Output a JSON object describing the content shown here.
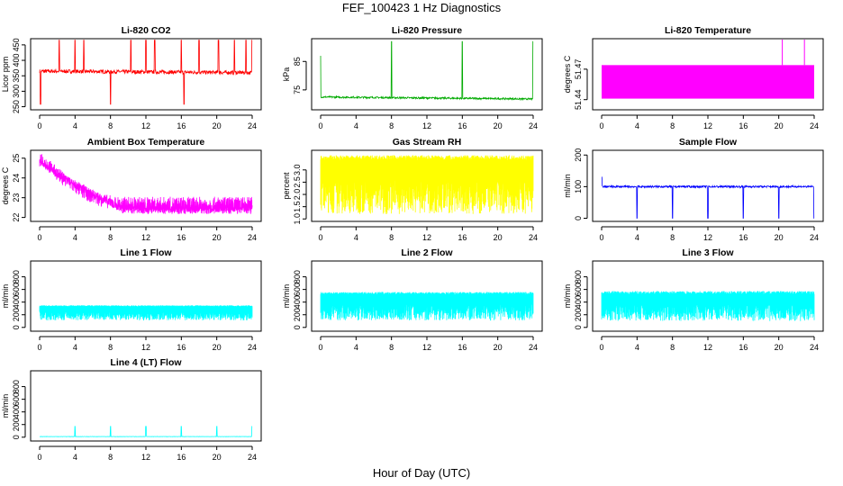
{
  "figure": {
    "title": "FEF_100423  1 Hz Diagnostics",
    "xlabel": "Hour of Day (UTC)"
  },
  "chart_data": [
    {
      "id": "co2",
      "type": "line",
      "title": "Li-820 CO2",
      "ylabel": "Licor ppm",
      "color": "#ff0000",
      "xlim": [
        0,
        24
      ],
      "ylim": [
        240,
        470
      ],
      "xticks": [
        0,
        4,
        8,
        12,
        16,
        20,
        24
      ],
      "yticks": [
        250,
        300,
        350,
        400,
        450
      ],
      "pattern": "spikes",
      "base": [
        365,
        360
      ],
      "noise": 6,
      "spike_hours": [
        2.2,
        4,
        5,
        8,
        10.3,
        12,
        13,
        16,
        18,
        20.2,
        22,
        23.3,
        24
      ],
      "spike_value": 465,
      "dip_hours": [
        0.1,
        8,
        16.3
      ],
      "dip_value": 258
    },
    {
      "id": "pressure",
      "type": "line",
      "title": "Li-820 Pressure",
      "ylabel": "kPa",
      "color": "#00aa00",
      "xlim": [
        0,
        24
      ],
      "ylim": [
        68,
        93
      ],
      "xticks": [
        0,
        4,
        8,
        12,
        16,
        20,
        24
      ],
      "yticks": [
        75,
        85
      ],
      "pattern": "spikes",
      "base": [
        72.5,
        71.8
      ],
      "noise": 0.3,
      "spike_hours": [
        8,
        16,
        24
      ],
      "spike_value": 92,
      "start_value": 87
    },
    {
      "id": "licor_temp",
      "type": "band",
      "title": "Li-820 Temperature",
      "ylabel": "degrees C",
      "color": "#ff00ff",
      "xlim": [
        0,
        24
      ],
      "ylim": [
        51.43,
        51.5
      ],
      "xticks": [
        0,
        4,
        8,
        12,
        16,
        20,
        24
      ],
      "yticks": [
        51.44,
        51.47
      ],
      "band_low": 51.441,
      "band_high": 51.474,
      "spike_hours": [
        20.4,
        22.9
      ],
      "spike_value": 51.5
    },
    {
      "id": "box_temp",
      "type": "line",
      "title": "Ambient Box Temperature",
      "ylabel": "degrees C",
      "color": "#ff00ff",
      "xlim": [
        0,
        24
      ],
      "ylim": [
        21.8,
        25.4
      ],
      "xticks": [
        0,
        4,
        8,
        12,
        16,
        20,
        24
      ],
      "yticks": [
        22,
        23,
        24,
        25
      ],
      "pattern": "decay",
      "start_value": 25.1,
      "end_value": 22.7,
      "decay_end": 9.5,
      "noise": 0.35
    },
    {
      "id": "rh",
      "type": "line",
      "title": "Gas Stream RH",
      "ylabel": "percent",
      "color": "#ffff00",
      "xlim": [
        0,
        24
      ],
      "ylim": [
        0.9,
        3.8
      ],
      "xticks": [
        0,
        4,
        8,
        12,
        16,
        20,
        24
      ],
      "yticks": [
        1.0,
        1.5,
        2.0,
        2.5,
        3.0
      ],
      "pattern": "cycling",
      "base": [
        3.5,
        3.5
      ],
      "low": 1.2,
      "noise": 0.1
    },
    {
      "id": "sample_flow",
      "type": "line",
      "title": "Sample Flow",
      "ylabel": "ml/min",
      "color": "#0000ff",
      "xlim": [
        0,
        24
      ],
      "ylim": [
        -10,
        215
      ],
      "xticks": [
        0,
        4,
        8,
        12,
        16,
        20,
        24
      ],
      "yticks": [
        0,
        100,
        200
      ],
      "pattern": "spikes",
      "base": [
        100,
        100
      ],
      "noise": 3,
      "spike_hours": [
        0,
        8,
        16
      ],
      "spike_value": 130,
      "dip_hours": [
        4,
        8,
        12,
        16,
        20,
        24
      ],
      "dip_value": 0
    },
    {
      "id": "line1",
      "type": "line",
      "title": "Line 1 Flow",
      "ylabel": "ml/min",
      "color": "#00ffff",
      "xlim": [
        0,
        24
      ],
      "ylim": [
        -60,
        1050
      ],
      "xticks": [
        0,
        4,
        8,
        12,
        16,
        20,
        24
      ],
      "yticks": [
        0,
        200,
        400,
        600,
        800
      ],
      "pattern": "cycling",
      "base": [
        340,
        340
      ],
      "low": 110,
      "noise": 10
    },
    {
      "id": "line2",
      "type": "line",
      "title": "Line 2 Flow",
      "ylabel": "ml/min",
      "color": "#00ffff",
      "xlim": [
        0,
        24
      ],
      "ylim": [
        -60,
        1050
      ],
      "xticks": [
        0,
        4,
        8,
        12,
        16,
        20,
        24
      ],
      "yticks": [
        0,
        200,
        400,
        600,
        800
      ],
      "pattern": "cycling",
      "base": [
        540,
        540
      ],
      "low": 110,
      "noise": 20
    },
    {
      "id": "line3",
      "type": "line",
      "title": "Line 3 Flow",
      "ylabel": "ml/min",
      "color": "#00ffff",
      "xlim": [
        0,
        24
      ],
      "ylim": [
        -60,
        1050
      ],
      "xticks": [
        0,
        4,
        8,
        12,
        16,
        20,
        24
      ],
      "yticks": [
        0,
        200,
        400,
        600,
        800
      ],
      "pattern": "cycling",
      "base": [
        550,
        550
      ],
      "low": 100,
      "noise": 25
    },
    {
      "id": "line4",
      "type": "line",
      "title": "Line 4 (LT) Flow",
      "ylabel": "ml/min",
      "color": "#00ffff",
      "xlim": [
        0,
        24
      ],
      "ylim": [
        -60,
        1050
      ],
      "xticks": [
        0,
        4,
        8,
        12,
        16,
        20,
        24
      ],
      "yticks": [
        0,
        200,
        400,
        600,
        800
      ],
      "pattern": "spikes",
      "base": [
        10,
        10
      ],
      "noise": 2,
      "spike_hours": [
        4,
        8,
        12,
        16,
        20,
        24
      ],
      "spike_value": 170
    }
  ]
}
